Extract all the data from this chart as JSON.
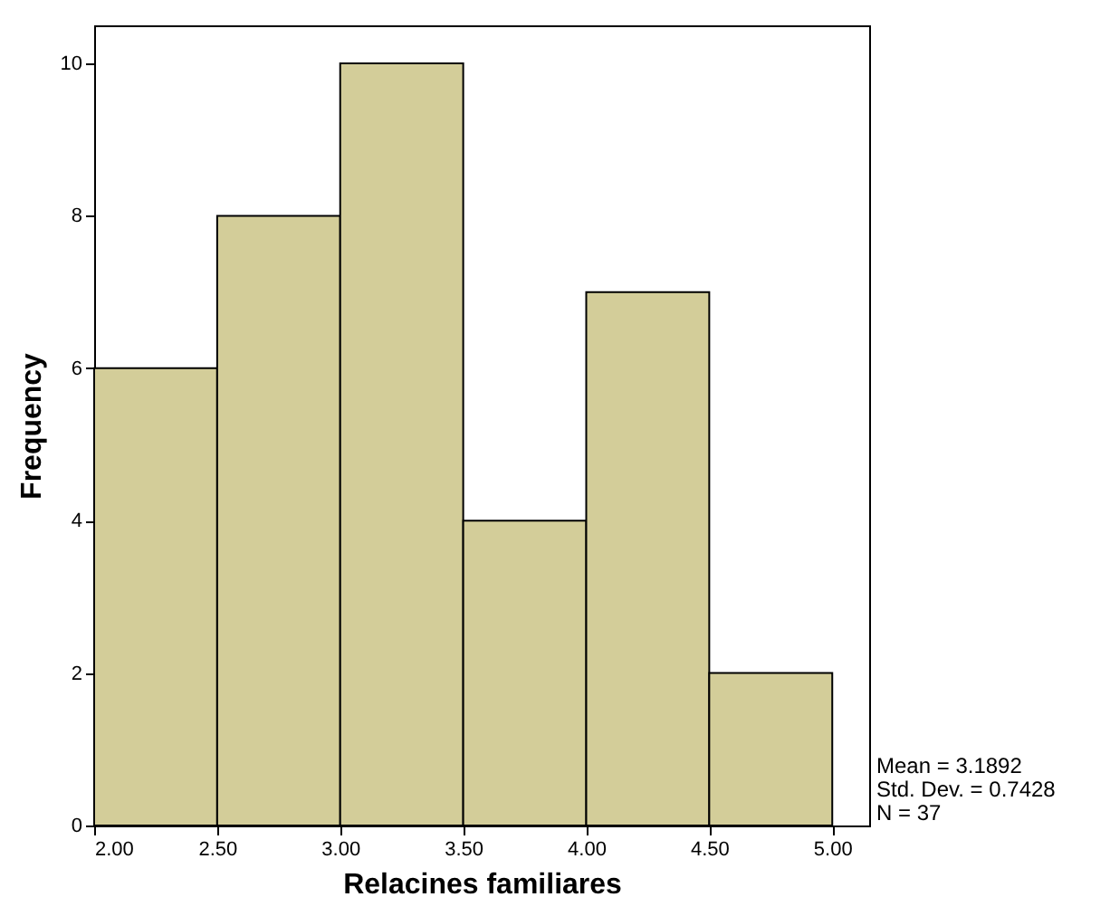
{
  "chart_data": {
    "type": "histogram",
    "xlabel": "Relacines familiares",
    "ylabel": "Frequency",
    "bins": [
      2.0,
      2.5,
      3.0,
      3.5,
      4.0,
      4.5,
      5.0
    ],
    "values": [
      6,
      8,
      10,
      4,
      7,
      2
    ],
    "color": "#d3cd99",
    "xlim": [
      2.0,
      5.15
    ],
    "ylim": [
      0,
      10.5
    ],
    "xticks": [
      {
        "value": 2,
        "label": "2.00"
      },
      {
        "value": 2.5,
        "label": "2.50"
      },
      {
        "value": 3,
        "label": "3.00"
      },
      {
        "value": 3.5,
        "label": "3.50"
      },
      {
        "value": 4,
        "label": "4.00"
      },
      {
        "value": 4.5,
        "label": "4.50"
      },
      {
        "value": 5,
        "label": "5.00"
      }
    ],
    "yticks": [
      0,
      2,
      4,
      6,
      8,
      10
    ],
    "grid": false,
    "annotations": [
      "Mean = 3.1892",
      "Std. Dev. = 0.7428",
      "N = 37"
    ]
  }
}
